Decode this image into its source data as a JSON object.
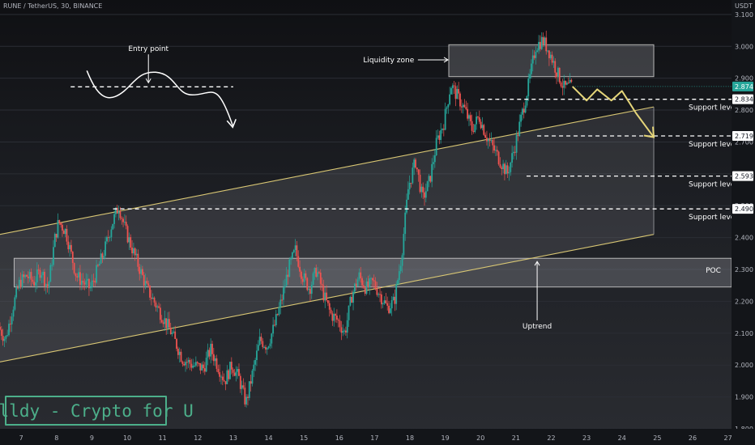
{
  "header": {
    "symbol_title": "RUNE / TetherUS, 30, BINANCE",
    "currency": "USDT"
  },
  "watermark": {
    "text": "Solldy - Crypto for U"
  },
  "colors": {
    "candle_up": "#26a69a",
    "candle_down": "#ef5350",
    "highlight_line": "#e6d67a",
    "channel_line": "#d9c774",
    "price_tag_bg": "#26a69a",
    "watermark": "#4caf8a"
  },
  "chart_data": {
    "type": "candlestick",
    "symbol": "RUNE / TetherUS",
    "interval": "30",
    "exchange": "BINANCE",
    "x_tick_labels": [
      "7",
      "8",
      "9",
      "10",
      "11",
      "12",
      "13",
      "14",
      "15",
      "16",
      "17",
      "18",
      "19",
      "20",
      "21",
      "22",
      "23",
      "24",
      "25",
      "26",
      "27"
    ],
    "y_tick_labels": [
      "1.800",
      "1.900",
      "2.000",
      "2.100",
      "2.200",
      "2.300",
      "2.400",
      "2.500",
      "2.600",
      "2.700",
      "2.800",
      "2.900",
      "3.000",
      "3.100"
    ],
    "ylim": [
      1.8,
      3.12
    ],
    "xlim": [
      6.4,
      27.1
    ],
    "current_price": "2.874",
    "current_price_value": 2.874,
    "level_tags": [
      "2.834",
      "2.719",
      "2.593",
      "2.490"
    ],
    "levels": [
      {
        "value": 2.834,
        "label": "Support level",
        "x_start": 20.0
      },
      {
        "value": 2.719,
        "label": "Support level",
        "x_start": 21.6
      },
      {
        "value": 2.593,
        "label": "Support level",
        "x_start": 21.3
      },
      {
        "value": 2.49,
        "label": "Support level",
        "x_start": 9.6
      }
    ],
    "price_path": [
      [
        6.4,
        2.12
      ],
      [
        6.6,
        2.08
      ],
      [
        6.8,
        2.18
      ],
      [
        7.0,
        2.26
      ],
      [
        7.2,
        2.28
      ],
      [
        7.4,
        2.26
      ],
      [
        7.6,
        2.3
      ],
      [
        7.8,
        2.24
      ],
      [
        8.0,
        2.4
      ],
      [
        8.1,
        2.45
      ],
      [
        8.3,
        2.42
      ],
      [
        8.6,
        2.28
      ],
      [
        8.8,
        2.26
      ],
      [
        9.0,
        2.24
      ],
      [
        9.2,
        2.3
      ],
      [
        9.4,
        2.36
      ],
      [
        9.6,
        2.44
      ],
      [
        9.8,
        2.5
      ],
      [
        10.0,
        2.42
      ],
      [
        10.2,
        2.36
      ],
      [
        10.4,
        2.3
      ],
      [
        10.6,
        2.24
      ],
      [
        10.8,
        2.2
      ],
      [
        11.0,
        2.16
      ],
      [
        11.3,
        2.1
      ],
      [
        11.6,
        2.02
      ],
      [
        11.9,
        2.0
      ],
      [
        12.2,
        1.99
      ],
      [
        12.4,
        2.05
      ],
      [
        12.6,
        2.0
      ],
      [
        12.8,
        1.95
      ],
      [
        13.0,
        2.0
      ],
      [
        13.2,
        1.96
      ],
      [
        13.4,
        1.88
      ],
      [
        13.6,
        1.98
      ],
      [
        13.8,
        2.08
      ],
      [
        14.0,
        2.06
      ],
      [
        14.2,
        2.12
      ],
      [
        14.4,
        2.2
      ],
      [
        14.6,
        2.3
      ],
      [
        14.8,
        2.36
      ],
      [
        15.0,
        2.28
      ],
      [
        15.2,
        2.24
      ],
      [
        15.4,
        2.3
      ],
      [
        15.6,
        2.22
      ],
      [
        15.8,
        2.16
      ],
      [
        16.0,
        2.14
      ],
      [
        16.2,
        2.1
      ],
      [
        16.4,
        2.22
      ],
      [
        16.6,
        2.28
      ],
      [
        16.8,
        2.24
      ],
      [
        17.0,
        2.26
      ],
      [
        17.2,
        2.22
      ],
      [
        17.4,
        2.18
      ],
      [
        17.6,
        2.2
      ],
      [
        17.8,
        2.34
      ],
      [
        18.0,
        2.56
      ],
      [
        18.2,
        2.64
      ],
      [
        18.4,
        2.52
      ],
      [
        18.6,
        2.58
      ],
      [
        18.8,
        2.7
      ],
      [
        19.0,
        2.76
      ],
      [
        19.2,
        2.88
      ],
      [
        19.4,
        2.84
      ],
      [
        19.6,
        2.8
      ],
      [
        19.8,
        2.74
      ],
      [
        20.0,
        2.78
      ],
      [
        20.2,
        2.72
      ],
      [
        20.4,
        2.68
      ],
      [
        20.6,
        2.64
      ],
      [
        20.8,
        2.6
      ],
      [
        21.0,
        2.68
      ],
      [
        21.2,
        2.78
      ],
      [
        21.4,
        2.88
      ],
      [
        21.6,
        3.0
      ],
      [
        21.8,
        3.02
      ],
      [
        22.0,
        2.98
      ],
      [
        22.2,
        2.92
      ],
      [
        22.4,
        2.87
      ],
      [
        22.6,
        2.874
      ]
    ],
    "projection_path": [
      [
        22.6,
        2.874
      ],
      [
        23.0,
        2.83
      ],
      [
        23.3,
        2.865
      ],
      [
        23.7,
        2.83
      ],
      [
        24.0,
        2.86
      ],
      [
        24.4,
        2.79
      ],
      [
        24.9,
        2.715
      ]
    ],
    "channel": {
      "upper": [
        [
          6.4,
          2.41
        ],
        [
          24.9,
          2.81
        ]
      ],
      "lower": [
        [
          6.4,
          2.01
        ],
        [
          24.9,
          2.41
        ]
      ],
      "fill_end_x": 24.9
    },
    "zones": [
      {
        "label": "Liquidity zone",
        "x0": 19.1,
        "x1": 24.9,
        "y0": 2.905,
        "y1": 3.005
      },
      {
        "label": "POC",
        "x0": 6.8,
        "x1": 27.1,
        "y0": 2.245,
        "y1": 2.335
      }
    ],
    "annotations": [
      {
        "text": "Entry point",
        "x": 10.6,
        "y": 2.985
      },
      {
        "text": "Liquidity zone",
        "x": 17.4,
        "y": 2.95
      },
      {
        "text": "Uptrend",
        "x": 21.6,
        "y": 2.115
      },
      {
        "text": "POC",
        "x": 26.8,
        "y": 2.29
      }
    ],
    "entry_point_level": 2.873,
    "entry_point_x_range": [
      8.4,
      13.0
    ]
  }
}
